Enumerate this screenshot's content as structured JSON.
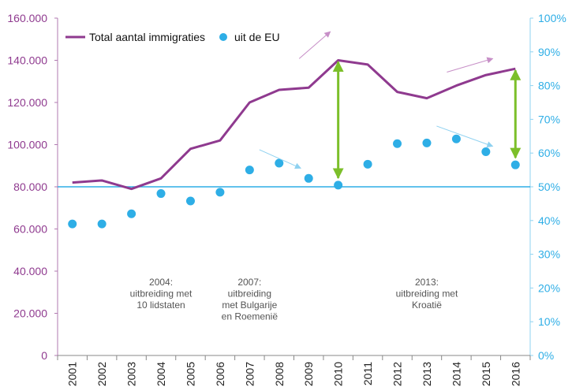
{
  "chart_data": {
    "type": "line",
    "x": [
      "2001",
      "2002",
      "2003",
      "2004",
      "2005",
      "2006",
      "2007",
      "2008",
      "2009",
      "2010",
      "2011",
      "2012",
      "2013",
      "2014",
      "2015",
      "2016"
    ],
    "series": [
      {
        "name": "Total aantal immigraties",
        "axis": "left",
        "type": "line",
        "color": "#8f3a8f",
        "values": [
          82000,
          83000,
          79000,
          84000,
          98000,
          102000,
          120000,
          126000,
          127000,
          140000,
          138000,
          125000,
          122000,
          128000,
          133000,
          136000
        ]
      },
      {
        "name": "uit de EU",
        "axis": "right",
        "type": "scatter",
        "color": "#2eaee6",
        "values": [
          39,
          39,
          42,
          48,
          45.8,
          48.4,
          55,
          57,
          52.5,
          50.5,
          56.7,
          62.8,
          63,
          64.2,
          60.4,
          56.5
        ]
      }
    ],
    "y_left": {
      "ylim": [
        0,
        160000
      ],
      "ticks": [
        "0",
        "20.000",
        "40.000",
        "60.000",
        "80.000",
        "100.000",
        "120.000",
        "140.000",
        "160.000"
      ],
      "color": "#8f3a8f"
    },
    "y_right": {
      "ylim": [
        0,
        100
      ],
      "ticks": [
        "0%",
        "10%",
        "20%",
        "30%",
        "40%",
        "50%",
        "60%",
        "70%",
        "80%",
        "90%",
        "100%"
      ],
      "color": "#2eaee6"
    },
    "reference_line": {
      "value": 50,
      "axis": "right",
      "color": "#2eaee6"
    },
    "legend_position": "top-left",
    "grid": false,
    "annotations": [
      {
        "x": "2004",
        "lines": [
          "2004:",
          "uitbreiding met",
          "10 lidstaten"
        ]
      },
      {
        "x": "2007",
        "lines": [
          "2007:",
          "uitbreiding",
          "met Bulgarije",
          "en Roemenië"
        ]
      },
      {
        "x": "2013",
        "lines": [
          "2013:",
          "uitbreiding met",
          "Kroatië"
        ]
      }
    ],
    "gap_arrows": [
      {
        "x": "2010",
        "from": 50.5,
        "to": 87.5,
        "color": "#7cbf2a"
      },
      {
        "x": "2016",
        "from": 56.5,
        "to": 85,
        "color": "#7cbf2a"
      }
    ],
    "trend_arrows": [
      {
        "series": "line",
        "from_x": "2009",
        "to_x": "2010",
        "from": 88,
        "to": 96
      },
      {
        "series": "line",
        "from_x": "2014",
        "to_x": "2015.5",
        "from": 84,
        "to": 88
      },
      {
        "series": "scatter",
        "from_x": "2008",
        "to_x": "2009",
        "from": 61,
        "to": 55.5
      },
      {
        "series": "scatter",
        "from_x": "2014",
        "to_x": "2015.5",
        "from": 68,
        "to": 62
      }
    ]
  }
}
